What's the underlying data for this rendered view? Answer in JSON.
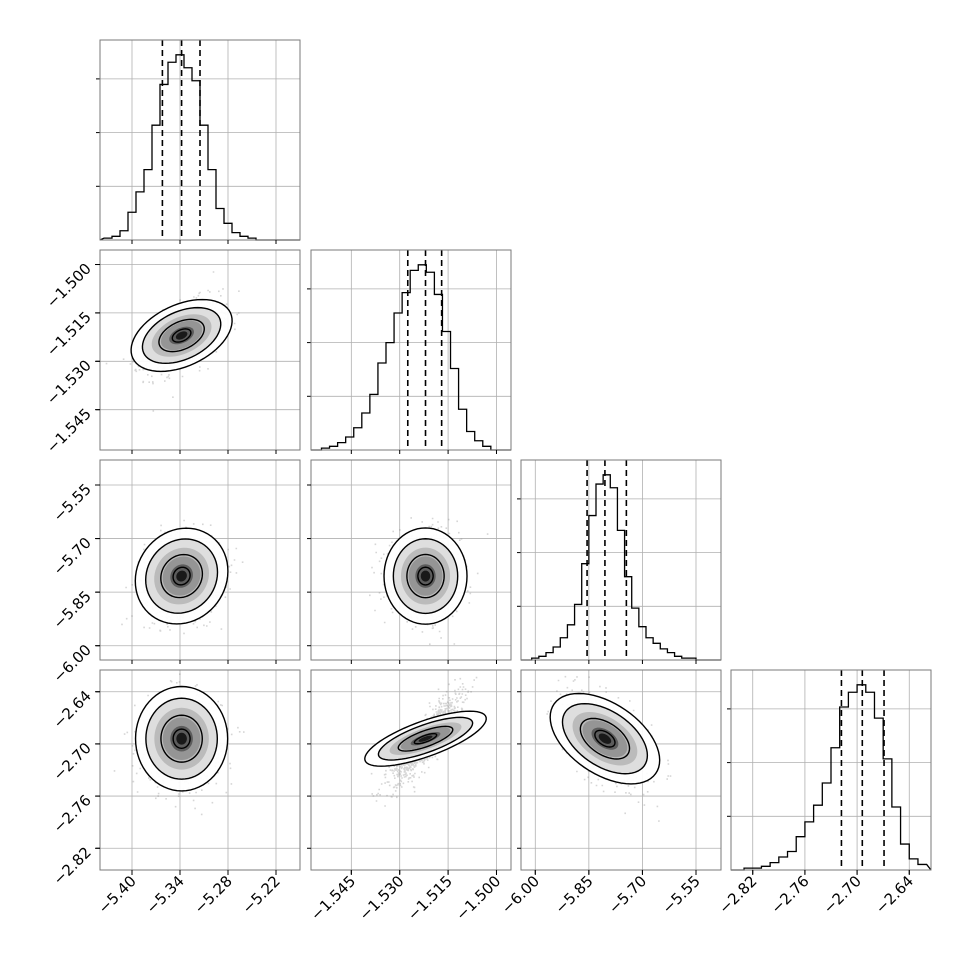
{
  "chart_data": {
    "type": "corner",
    "parameters": [
      {
        "range": [
          -5.44,
          -5.19
        ],
        "ticks": [
          -5.4,
          -5.34,
          -5.28,
          -5.22
        ],
        "tick_labels": [
          "−5.40",
          "−5.34",
          "−5.28",
          "−5.22"
        ],
        "quantiles": [
          -5.362,
          -5.338,
          -5.315
        ],
        "hist_x": [
          -5.43,
          -5.42,
          -5.41,
          -5.4,
          -5.39,
          -5.38,
          -5.37,
          -5.36,
          -5.35,
          -5.34,
          -5.33,
          -5.32,
          -5.31,
          -5.3,
          -5.29,
          -5.28,
          -5.27,
          -5.26,
          -5.25,
          -5.24
        ],
        "hist_counts": [
          0.01,
          0.02,
          0.05,
          0.15,
          0.26,
          0.38,
          0.62,
          0.84,
          0.96,
          1.0,
          0.93,
          0.86,
          0.62,
          0.38,
          0.17,
          0.09,
          0.04,
          0.02,
          0.01,
          0.0
        ],
        "hist_ylim": [
          0,
          1.08
        ],
        "hist_grid_levels": [
          0.29,
          0.58,
          0.87
        ]
      },
      {
        "range": [
          -1.5575,
          -1.4955
        ],
        "ticks": [
          -1.545,
          -1.53,
          -1.515,
          -1.5
        ],
        "tick_labels": [
          "−1.545",
          "−1.530",
          "−1.515",
          "−1.500"
        ],
        "quantiles": [
          -1.5275,
          -1.522,
          -1.517
        ],
        "hist_x": [
          -1.5555,
          -1.553,
          -1.5505,
          -1.548,
          -1.5455,
          -1.543,
          -1.5405,
          -1.538,
          -1.5355,
          -1.533,
          -1.5305,
          -1.528,
          -1.5255,
          -1.523,
          -1.5205,
          -1.518,
          -1.5155,
          -1.513,
          -1.5105,
          -1.508,
          -1.5055,
          -1.503,
          -1.5005
        ],
        "hist_counts": [
          0.0,
          0.01,
          0.02,
          0.04,
          0.07,
          0.12,
          0.2,
          0.3,
          0.47,
          0.58,
          0.74,
          0.85,
          0.97,
          1.0,
          0.96,
          0.84,
          0.64,
          0.44,
          0.22,
          0.1,
          0.05,
          0.02,
          0.0
        ],
        "hist_ylim": [
          0,
          1.08
        ],
        "hist_grid_levels": [
          0.29,
          0.58,
          0.87
        ]
      },
      {
        "range": [
          -6.04,
          -5.48
        ],
        "ticks": [
          -6.0,
          -5.85,
          -5.7,
          -5.55
        ],
        "tick_labels": [
          "−6.00",
          "−5.85",
          "−5.70",
          "−5.55"
        ],
        "quantiles": [
          -5.855,
          -5.805,
          -5.745
        ],
        "hist_x": [
          -6.02,
          -6.0,
          -5.98,
          -5.96,
          -5.94,
          -5.92,
          -5.9,
          -5.88,
          -5.86,
          -5.84,
          -5.82,
          -5.8,
          -5.78,
          -5.76,
          -5.74,
          -5.72,
          -5.7,
          -5.68,
          -5.66,
          -5.64,
          -5.62,
          -5.6,
          -5.58,
          -5.56,
          -5.54
        ],
        "hist_counts": [
          0.0,
          0.01,
          0.02,
          0.04,
          0.07,
          0.12,
          0.19,
          0.3,
          0.52,
          0.78,
          0.95,
          1.0,
          0.93,
          0.7,
          0.45,
          0.28,
          0.18,
          0.12,
          0.09,
          0.06,
          0.04,
          0.02,
          0.01,
          0.01,
          0.0
        ],
        "hist_ylim": [
          0,
          1.08
        ],
        "hist_grid_levels": [
          0.29,
          0.58,
          0.87
        ]
      },
      {
        "range": [
          -2.845,
          -2.615
        ],
        "ticks": [
          -2.82,
          -2.76,
          -2.7,
          -2.64
        ],
        "tick_labels": [
          "−2.82",
          "−2.76",
          "−2.70",
          "−2.64"
        ],
        "quantiles": [
          -2.718,
          -2.694,
          -2.669
        ],
        "hist_x": [
          -2.835,
          -2.825,
          -2.815,
          -2.805,
          -2.795,
          -2.785,
          -2.775,
          -2.765,
          -2.755,
          -2.745,
          -2.735,
          -2.725,
          -2.715,
          -2.705,
          -2.695,
          -2.685,
          -2.675,
          -2.665,
          -2.655,
          -2.645,
          -2.635,
          -2.625
        ],
        "hist_counts": [
          0.0,
          0.01,
          0.01,
          0.02,
          0.04,
          0.07,
          0.1,
          0.18,
          0.26,
          0.35,
          0.47,
          0.66,
          0.88,
          0.96,
          1.0,
          0.96,
          0.82,
          0.6,
          0.34,
          0.14,
          0.06,
          0.03
        ],
        "hist_ylim": [
          0,
          1.08
        ],
        "hist_grid_levels": [
          0.29,
          0.58,
          0.87
        ]
      }
    ],
    "pairs": [
      {
        "x": 0,
        "y": 1,
        "correlation": 0.5
      },
      {
        "x": 0,
        "y": 2,
        "correlation": 0.1
      },
      {
        "x": 1,
        "y": 2,
        "correlation": 0.0
      },
      {
        "x": 0,
        "y": 3,
        "correlation": 0.0
      },
      {
        "x": 1,
        "y": 3,
        "correlation": 0.85
      },
      {
        "x": 2,
        "y": 3,
        "correlation": -0.5
      }
    ],
    "grid": true,
    "colors": {
      "scatter": "#8a8a8a",
      "lines": "#000000",
      "grid": "#b0b0b0",
      "frame": "#7a7a7a"
    }
  }
}
